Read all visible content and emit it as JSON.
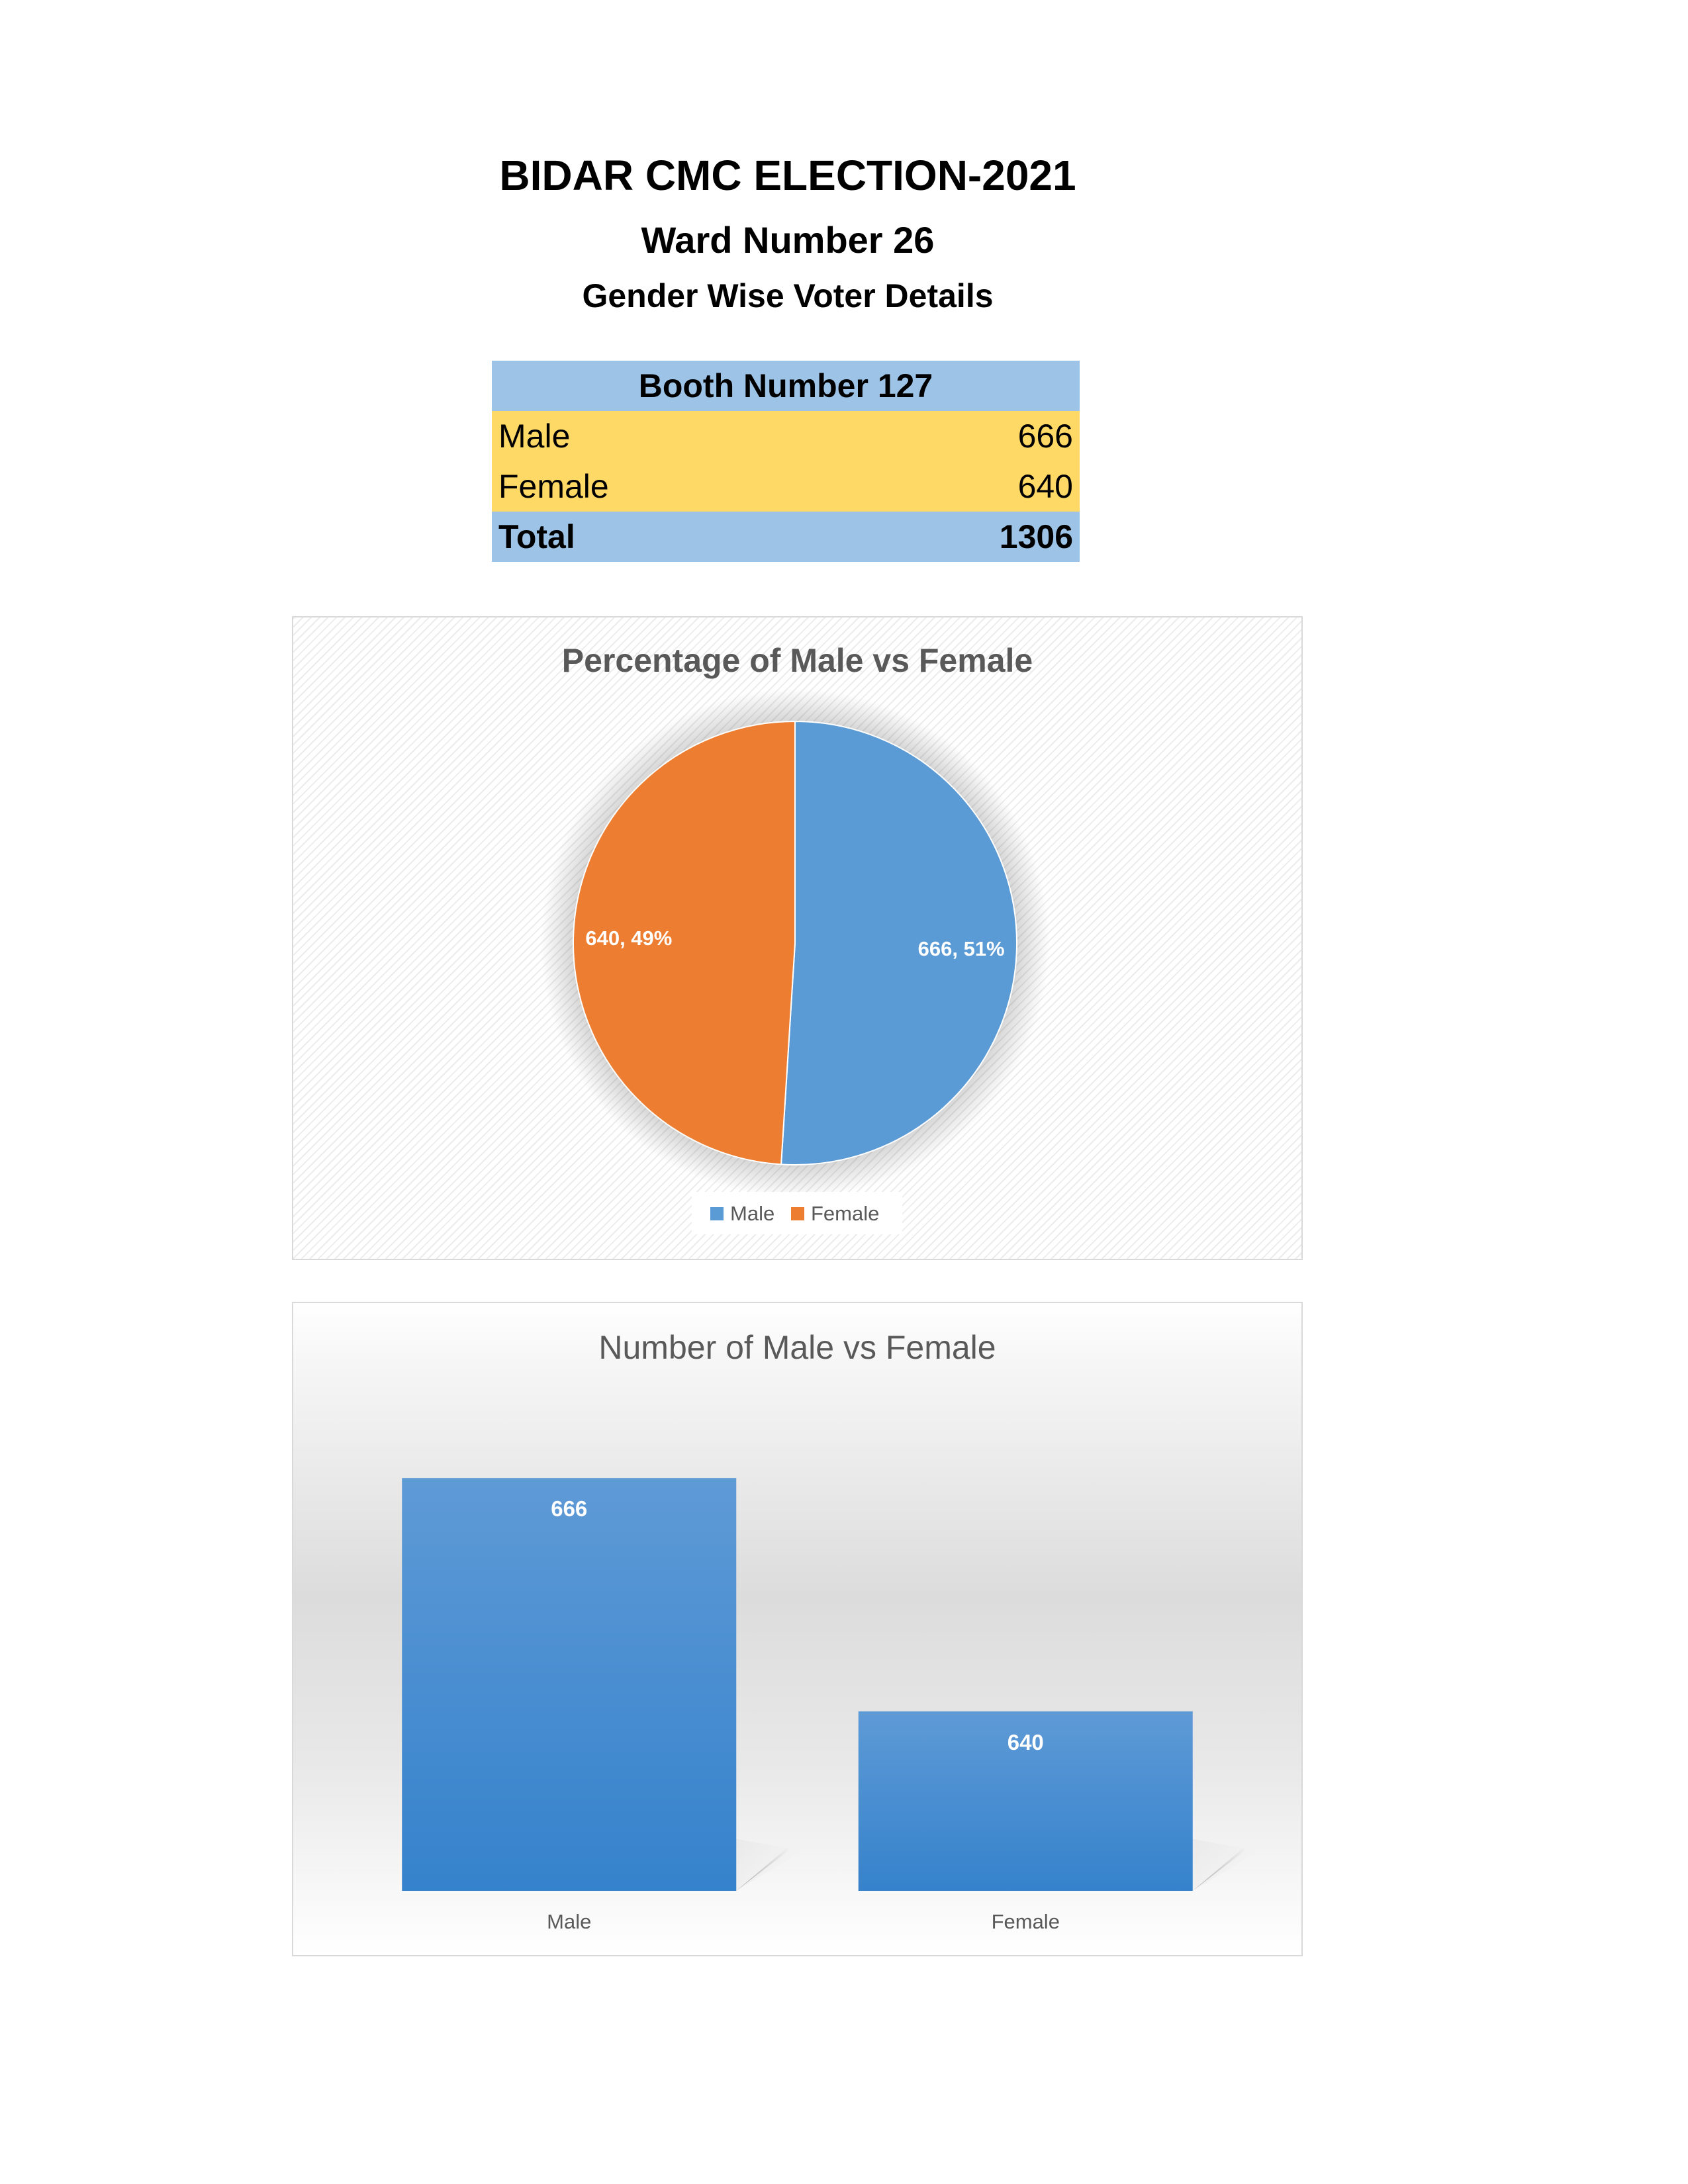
{
  "header": {
    "title": "BIDAR CMC ELECTION-2021",
    "subtitle": "Ward Number 26",
    "subtitle2": "Gender Wise Voter Details"
  },
  "table": {
    "booth_label": "Booth Number 127",
    "rows": [
      {
        "label": "Male",
        "value": "666"
      },
      {
        "label": "Female",
        "value": "640"
      }
    ],
    "total_label": "Total",
    "total_value": "1306"
  },
  "colors": {
    "male": "#5b9bd5",
    "female": "#ed7d31",
    "bar_top": "#5e9ad6",
    "bar_bottom": "#3582cc"
  },
  "chart_data": [
    {
      "type": "pie",
      "title": "Percentage of Male vs Female",
      "categories": [
        "Male",
        "Female"
      ],
      "values": [
        666,
        640
      ],
      "data_labels": [
        "666, 51%",
        "640, 49%"
      ],
      "legend": {
        "position": "bottom",
        "entries": [
          "Male",
          "Female"
        ]
      }
    },
    {
      "type": "bar",
      "title": "Number of Male vs Female",
      "categories": [
        "Male",
        "Female"
      ],
      "values": [
        666,
        640
      ],
      "data_labels": [
        "666",
        "640"
      ],
      "ylim": [
        620,
        670
      ],
      "grid": false
    }
  ]
}
